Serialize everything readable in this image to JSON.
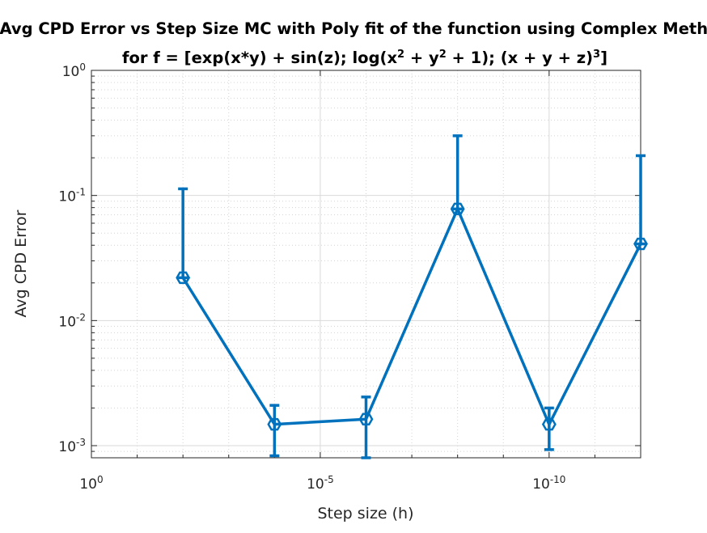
{
  "chart_data": {
    "type": "line",
    "title_line1": "Avg CPD Error vs Step Size MC with Poly fit of the function using Complex Method",
    "title_line2_parts": [
      "for f = [exp(x*y) + sin(z); log(x",
      "2",
      " + y",
      "2",
      " + 1); (x + y + z)",
      "3",
      "]"
    ],
    "xlabel": "Step size (h)",
    "ylabel": "Avg CPD Error",
    "x_scale": "log-reversed",
    "y_scale": "log",
    "xlim": [
      1,
      1e-12
    ],
    "ylim": [
      0.0008,
      1
    ],
    "x_ticks": [
      {
        "value": 1,
        "base": "10",
        "exp": "0"
      },
      {
        "value": 1e-05,
        "base": "10",
        "exp": "-5"
      },
      {
        "value": 1e-10,
        "base": "10",
        "exp": "-10"
      }
    ],
    "y_ticks": [
      {
        "value": 0.001,
        "base": "10",
        "exp": "-3"
      },
      {
        "value": 0.01,
        "base": "10",
        "exp": "-2"
      },
      {
        "value": 0.1,
        "base": "10",
        "exp": "-1"
      },
      {
        "value": 1,
        "base": "10",
        "exp": "0"
      }
    ],
    "grid": true,
    "series": [
      {
        "color": "#0072BD",
        "marker": "hexagon",
        "x": [
          0.01,
          0.0001,
          1e-06,
          1e-08,
          1e-10,
          1e-12
        ],
        "y": [
          0.022,
          0.00148,
          0.00163,
          0.078,
          0.00148,
          0.041
        ],
        "y_upper": [
          0.113,
          0.0021,
          0.00245,
          0.3,
          0.002,
          0.208
        ],
        "y_lower": [
          0.022,
          0.00083,
          0.0008,
          0.078,
          0.00093,
          0.041
        ]
      }
    ]
  }
}
